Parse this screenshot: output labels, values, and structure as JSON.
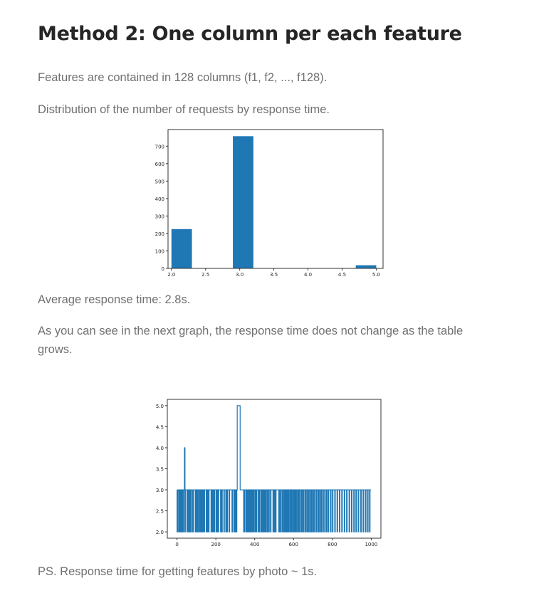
{
  "heading": "Method 2: One column per each feature",
  "paragraphs": {
    "features": "Features are contained in 128 columns (f1, f2, ..., f128).",
    "distribution": "Distribution of the number of requests by response time.",
    "average": "Average response time: 2.8s.",
    "next_graph": "As you can see in the next graph, the response time does not change as the table grows.",
    "ps": "PS. Response time for getting features by photo ~ 1s."
  },
  "colors": {
    "series": "#1f77b4",
    "axis": "#333333"
  },
  "chart_data": [
    {
      "type": "bar",
      "title": "",
      "xlabel": "",
      "ylabel": "",
      "bins": [
        {
          "x0": 2.0,
          "x1": 2.3,
          "value": 225
        },
        {
          "x0": 2.9,
          "x1": 3.2,
          "value": 757
        },
        {
          "x0": 4.7,
          "x1": 5.0,
          "value": 18
        }
      ],
      "xlim": [
        1.95,
        5.1
      ],
      "ylim": [
        0,
        795
      ],
      "xticks": [
        2.0,
        2.5,
        3.0,
        3.5,
        4.0,
        4.5,
        5.0
      ],
      "xtick_labels": [
        "2.0",
        "2.5",
        "3.0",
        "3.5",
        "4.0",
        "4.5",
        "5.0"
      ],
      "yticks": [
        0,
        100,
        200,
        300,
        400,
        500,
        600,
        700
      ],
      "ytick_labels": [
        "0",
        "100",
        "200",
        "300",
        "400",
        "500",
        "600",
        "700"
      ],
      "grid": false,
      "legend": "none"
    },
    {
      "type": "line",
      "title": "",
      "xlabel": "",
      "ylabel": "",
      "xlim": [
        -50,
        1050
      ],
      "ylim": [
        1.85,
        5.15
      ],
      "xticks": [
        0,
        200,
        400,
        600,
        800,
        1000
      ],
      "xtick_labels": [
        "0",
        "200",
        "400",
        "600",
        "800",
        "1000"
      ],
      "yticks": [
        2.0,
        2.5,
        3.0,
        3.5,
        4.0,
        4.5,
        5.0
      ],
      "ytick_labels": [
        "2.0",
        "2.5",
        "3.0",
        "3.5",
        "4.0",
        "4.5",
        "5.0"
      ],
      "baseline": 3.0,
      "dips_to_2": [
        0,
        8,
        13,
        17,
        22,
        27,
        31,
        40,
        51,
        57,
        64,
        70,
        79,
        82,
        94,
        100,
        106,
        114,
        121,
        128,
        133,
        139,
        150,
        156,
        162,
        175,
        181,
        187,
        191,
        201,
        206,
        212,
        224,
        230,
        241,
        251,
        257,
        268,
        283,
        293,
        300,
        305,
        343,
        346,
        355,
        359,
        364,
        370,
        377,
        383,
        389,
        395,
        403,
        408,
        418,
        423,
        432,
        438,
        444,
        449,
        456,
        464,
        472,
        481,
        494,
        500,
        507,
        524,
        531,
        540,
        548,
        555,
        562,
        568,
        575,
        583,
        590,
        598,
        605,
        612,
        620,
        627,
        636,
        643,
        651,
        660,
        668,
        676,
        684,
        692,
        700,
        708,
        717,
        726,
        734,
        742,
        751,
        760,
        769,
        778,
        790,
        800,
        812,
        824,
        836,
        848,
        861,
        873,
        886,
        898,
        910,
        921,
        933,
        946,
        958,
        970,
        981,
        991
      ],
      "spikes": [
        {
          "x0": 38,
          "x1": 41,
          "value": 4.0
        },
        {
          "x0": 310,
          "x1": 325,
          "value": 5.0
        }
      ],
      "x_end": 999,
      "grid": false,
      "legend": "none"
    }
  ]
}
